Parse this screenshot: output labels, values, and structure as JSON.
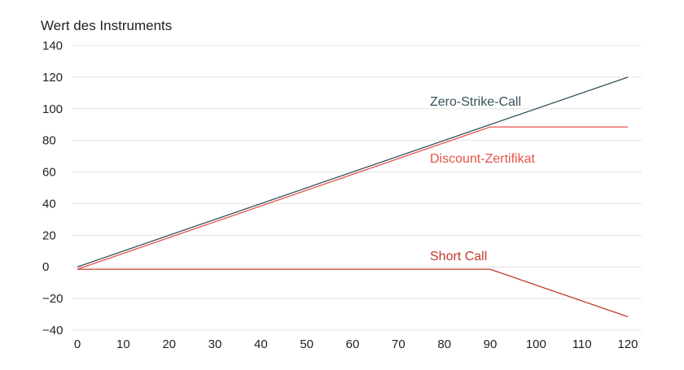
{
  "chart_data": {
    "type": "line",
    "title": "",
    "xlabel": "",
    "ylabel": "Wert des Instruments",
    "xlim": [
      0,
      120
    ],
    "ylim": [
      -40,
      140
    ],
    "x_ticks": [
      0,
      10,
      20,
      30,
      40,
      50,
      60,
      70,
      80,
      90,
      100,
      110,
      120
    ],
    "y_ticks": [
      140,
      120,
      100,
      80,
      60,
      40,
      20,
      0,
      -20,
      -40
    ],
    "y_tick_labels": [
      "140",
      "120",
      "100",
      "80",
      "60",
      "40",
      "20",
      "0",
      "−20",
      "−40"
    ],
    "grid": "horizontal",
    "legend": "none (direct labels)",
    "series": [
      {
        "name": "Zero-Strike-Call",
        "color": "#34525c",
        "points": [
          [
            0,
            0
          ],
          [
            120,
            120
          ]
        ]
      },
      {
        "name": "Discount-Zertifikat",
        "color": "#e5534b",
        "points": [
          [
            0,
            -1.5
          ],
          [
            90,
            88.5
          ],
          [
            120,
            88.5
          ]
        ]
      },
      {
        "name": "Short Call",
        "color": "#c0392b",
        "points": [
          [
            0,
            -1.5
          ],
          [
            90,
            -1.5
          ],
          [
            120,
            -31.5
          ]
        ]
      }
    ]
  }
}
